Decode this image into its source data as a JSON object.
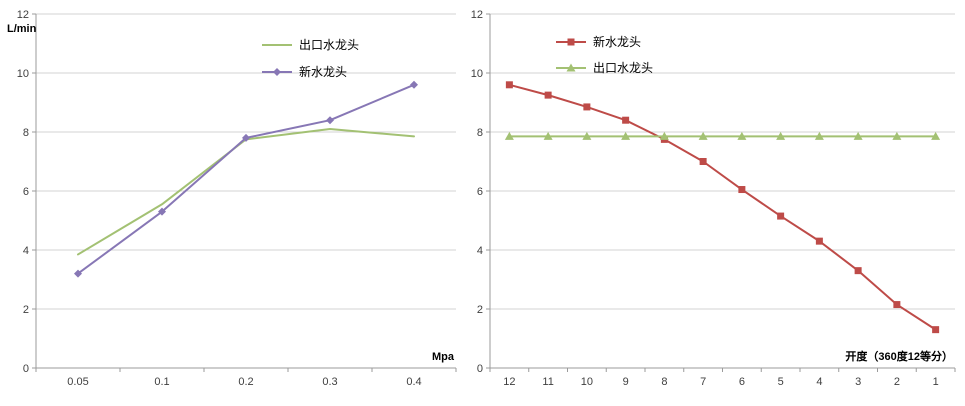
{
  "colors": {
    "grid": "#d3d3d3",
    "axis": "#9b9b9b",
    "tick_text": "#3f3f3f",
    "label_text": "#000000",
    "green_series": "#a3c173",
    "purple_series": "#8777b5",
    "red_series": "#be4b48"
  },
  "chart_data": [
    {
      "type": "line",
      "title": "",
      "ylabel": "L/min",
      "xlabel": "Mpa",
      "categories": [
        "0.05",
        "0.1",
        "0.2",
        "0.3",
        "0.4"
      ],
      "ylim": [
        0,
        12
      ],
      "ytick_step": 2,
      "grid": true,
      "legend_position": "top-center",
      "series": [
        {
          "name": "出口水龙头",
          "color": "#a3c173",
          "marker": "none",
          "values": [
            3.85,
            5.55,
            7.75,
            8.1,
            7.85
          ]
        },
        {
          "name": "新水龙头",
          "color": "#8777b5",
          "marker": "diamond",
          "values": [
            3.2,
            5.3,
            7.8,
            8.4,
            9.6
          ]
        }
      ]
    },
    {
      "type": "line",
      "title": "",
      "ylabel": "",
      "xlabel": "开度（360度12等分）",
      "categories": [
        "12",
        "11",
        "10",
        "9",
        "8",
        "7",
        "6",
        "5",
        "4",
        "3",
        "2",
        "1"
      ],
      "ylim": [
        0,
        12
      ],
      "ytick_step": 2,
      "grid": true,
      "legend_position": "top-left",
      "series": [
        {
          "name": "新水龙头",
          "color": "#be4b48",
          "marker": "square",
          "values": [
            9.6,
            9.25,
            8.85,
            8.4,
            7.75,
            7.0,
            6.05,
            5.15,
            4.3,
            3.3,
            2.15,
            1.3
          ]
        },
        {
          "name": "出口水龙头",
          "color": "#a3c173",
          "marker": "triangle",
          "values": [
            7.85,
            7.85,
            7.85,
            7.85,
            7.85,
            7.85,
            7.85,
            7.85,
            7.85,
            7.85,
            7.85,
            7.85
          ]
        }
      ]
    }
  ]
}
